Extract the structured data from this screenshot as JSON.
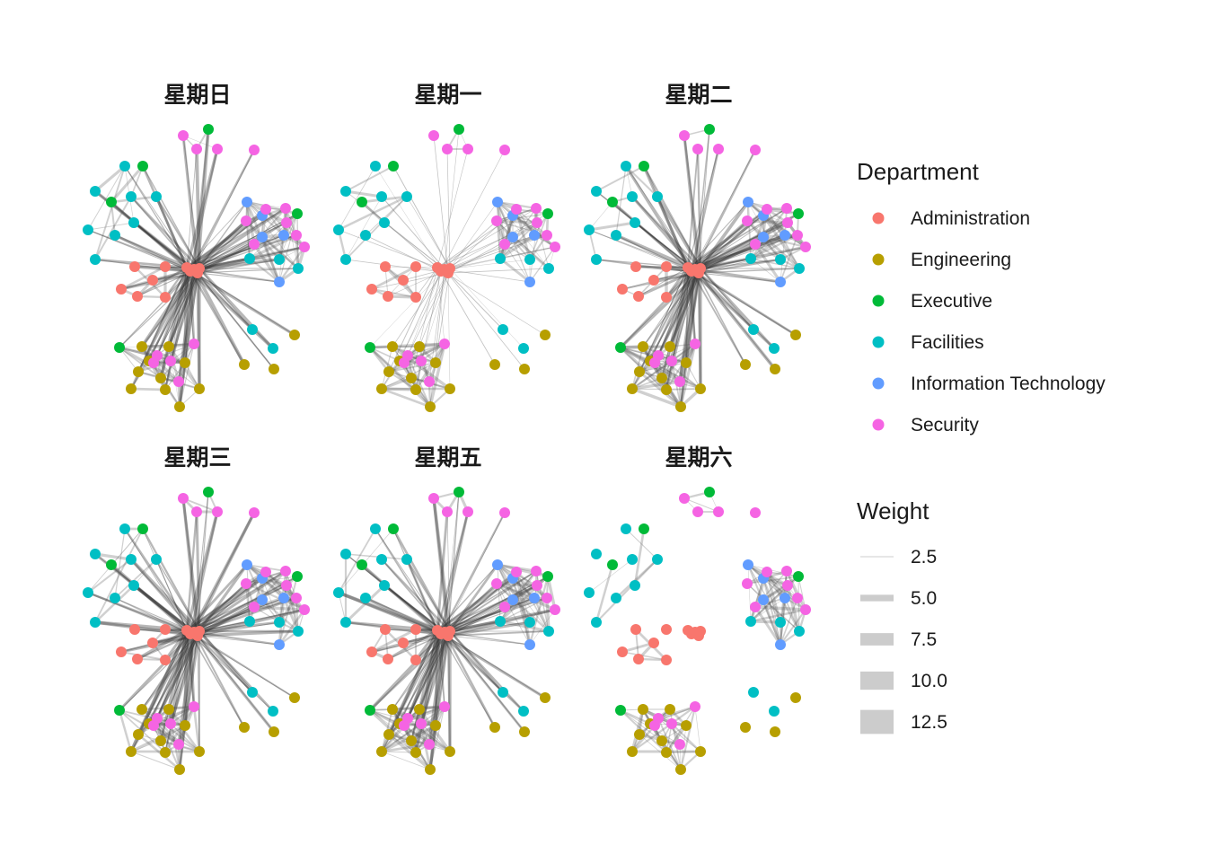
{
  "chart_data": {
    "type": "network",
    "facet_titles": [
      "星期日",
      "星期一",
      "星期二",
      "星期三",
      "星期五",
      "星期六"
    ],
    "legend_department": {
      "title": "Department",
      "items": [
        {
          "label": "Administration",
          "color": "#F8766D"
        },
        {
          "label": "Engineering",
          "color": "#B79F00"
        },
        {
          "label": "Executive",
          "color": "#00BA38"
        },
        {
          "label": "Facilities",
          "color": "#00BFC4"
        },
        {
          "label": "Information Technology",
          "color": "#619CFF"
        },
        {
          "label": "Security",
          "color": "#F564E3"
        }
      ]
    },
    "legend_weight": {
      "title": "Weight",
      "breaks": [
        {
          "label": "2.5",
          "value": 2.5
        },
        {
          "label": "5.0",
          "value": 5.0
        },
        {
          "label": "7.5",
          "value": 7.5
        },
        {
          "label": "10.0",
          "value": 10.0
        },
        {
          "label": "12.5",
          "value": 12.5
        }
      ]
    },
    "edge_density": [
      {
        "panel": "星期日",
        "hub_edges": "dense"
      },
      {
        "panel": "星期一",
        "hub_edges": "sparse"
      },
      {
        "panel": "星期二",
        "hub_edges": "dense"
      },
      {
        "panel": "星期三",
        "hub_edges": "dense"
      },
      {
        "panel": "星期五",
        "hub_edges": "dense"
      },
      {
        "panel": "星期六",
        "hub_edges": "none"
      }
    ]
  }
}
